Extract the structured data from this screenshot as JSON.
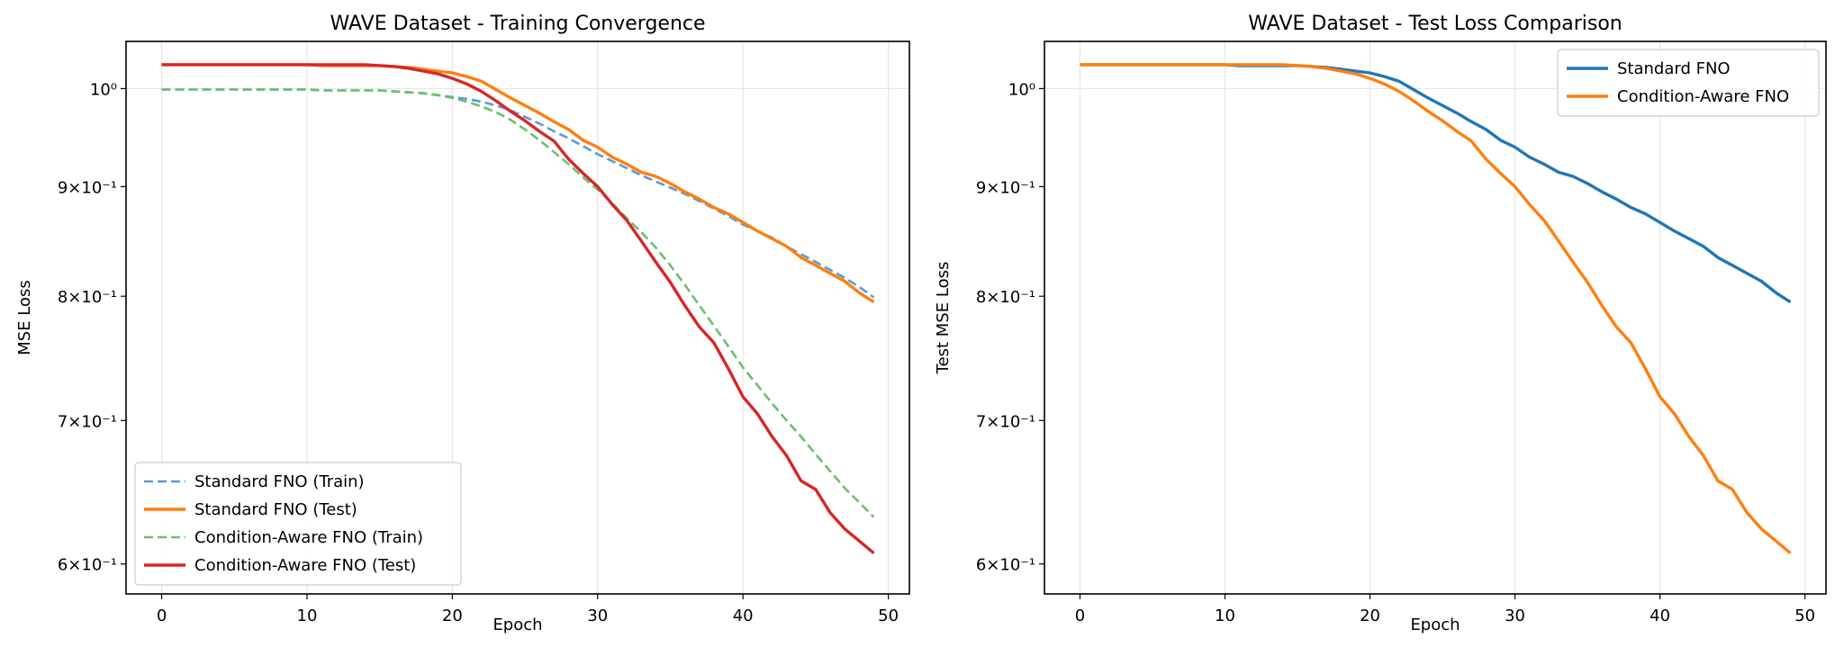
{
  "chart_data": [
    {
      "type": "line",
      "title": "WAVE Dataset - Training Convergence",
      "xlabel": "Epoch",
      "ylabel": "MSE Loss",
      "yscale": "log",
      "xlim": [
        -2.45,
        51.45
      ],
      "ylim": [
        0.581,
        1.052
      ],
      "xticks": [
        0,
        10,
        20,
        30,
        40,
        50
      ],
      "xtick_labels": [
        "0",
        "10",
        "20",
        "30",
        "40",
        "50"
      ],
      "yticks": [
        1.0,
        0.9,
        0.8,
        0.7,
        0.6
      ],
      "ytick_labels": [
        "10⁰",
        "9×10⁻¹",
        "8×10⁻¹",
        "7×10⁻¹",
        "6×10⁻¹"
      ],
      "grid": true,
      "legend_position": "lower-left",
      "series": [
        {
          "name": "Standard FNO (Train)",
          "color": "#5b9bd5",
          "style": "dashed",
          "values": [
            0.999,
            0.999,
            0.999,
            0.999,
            0.999,
            0.999,
            0.999,
            0.999,
            0.999,
            0.999,
            0.999,
            0.998,
            0.998,
            0.998,
            0.998,
            0.998,
            0.997,
            0.996,
            0.995,
            0.993,
            0.991,
            0.989,
            0.986,
            0.982,
            0.977,
            0.97,
            0.963,
            0.955,
            0.948,
            0.94,
            0.932,
            0.925,
            0.918,
            0.911,
            0.905,
            0.899,
            0.893,
            0.886,
            0.879,
            0.872,
            0.864,
            0.858,
            0.852,
            0.844,
            0.837,
            0.83,
            0.823,
            0.816,
            0.808,
            0.799
          ]
        },
        {
          "name": "Standard FNO (Test)",
          "color": "#ff7f0e",
          "style": "solid",
          "values": [
            1.026,
            1.026,
            1.026,
            1.026,
            1.026,
            1.026,
            1.026,
            1.026,
            1.026,
            1.026,
            1.026,
            1.025,
            1.025,
            1.025,
            1.025,
            1.025,
            1.024,
            1.023,
            1.021,
            1.019,
            1.017,
            1.013,
            1.008,
            0.999,
            0.99,
            0.982,
            0.974,
            0.965,
            0.957,
            0.946,
            0.939,
            0.929,
            0.922,
            0.914,
            0.91,
            0.903,
            0.895,
            0.888,
            0.88,
            0.874,
            0.866,
            0.858,
            0.851,
            0.844,
            0.834,
            0.827,
            0.82,
            0.813,
            0.803,
            0.795
          ]
        },
        {
          "name": "Condition-Aware FNO (Train)",
          "color": "#6cbf6c",
          "style": "dashed",
          "values": [
            0.999,
            0.999,
            0.999,
            0.999,
            0.999,
            0.999,
            0.999,
            0.999,
            0.999,
            0.999,
            0.999,
            0.998,
            0.998,
            0.998,
            0.998,
            0.998,
            0.997,
            0.996,
            0.995,
            0.993,
            0.99,
            0.986,
            0.981,
            0.975,
            0.967,
            0.957,
            0.946,
            0.934,
            0.922,
            0.909,
            0.897,
            0.884,
            0.87,
            0.857,
            0.843,
            0.827,
            0.81,
            0.792,
            0.775,
            0.758,
            0.741,
            0.727,
            0.713,
            0.7,
            0.688,
            0.675,
            0.663,
            0.651,
            0.641,
            0.631
          ]
        },
        {
          "name": "Condition-Aware FNO (Test)",
          "color": "#d62728",
          "style": "solid",
          "values": [
            1.026,
            1.026,
            1.026,
            1.026,
            1.026,
            1.026,
            1.026,
            1.026,
            1.026,
            1.026,
            1.026,
            1.026,
            1.026,
            1.026,
            1.026,
            1.025,
            1.024,
            1.022,
            1.019,
            1.016,
            1.011,
            1.005,
            0.997,
            0.987,
            0.976,
            0.966,
            0.955,
            0.945,
            0.927,
            0.913,
            0.9,
            0.883,
            0.868,
            0.849,
            0.83,
            0.812,
            0.792,
            0.774,
            0.761,
            0.74,
            0.718,
            0.705,
            0.688,
            0.674,
            0.656,
            0.65,
            0.634,
            0.623,
            0.615,
            0.607
          ]
        }
      ]
    },
    {
      "type": "line",
      "title": "WAVE Dataset - Test Loss Comparison",
      "xlabel": "Epoch",
      "ylabel": "Test MSE Loss",
      "yscale": "log",
      "xlim": [
        -2.45,
        51.45
      ],
      "ylim": [
        0.581,
        1.052
      ],
      "xticks": [
        0,
        10,
        20,
        30,
        40,
        50
      ],
      "xtick_labels": [
        "0",
        "10",
        "20",
        "30",
        "40",
        "50"
      ],
      "yticks": [
        1.0,
        0.9,
        0.8,
        0.7,
        0.6
      ],
      "ytick_labels": [
        "10⁰",
        "9×10⁻¹",
        "8×10⁻¹",
        "7×10⁻¹",
        "6×10⁻¹"
      ],
      "grid": true,
      "legend_position": "upper-right",
      "series": [
        {
          "name": "Standard FNO",
          "color": "#1f77b4",
          "style": "solid",
          "values": [
            1.026,
            1.026,
            1.026,
            1.026,
            1.026,
            1.026,
            1.026,
            1.026,
            1.026,
            1.026,
            1.026,
            1.025,
            1.025,
            1.025,
            1.025,
            1.025,
            1.024,
            1.023,
            1.021,
            1.019,
            1.017,
            1.013,
            1.008,
            0.999,
            0.99,
            0.982,
            0.974,
            0.965,
            0.957,
            0.946,
            0.939,
            0.929,
            0.922,
            0.914,
            0.91,
            0.903,
            0.895,
            0.888,
            0.88,
            0.874,
            0.866,
            0.858,
            0.851,
            0.844,
            0.834,
            0.827,
            0.82,
            0.813,
            0.803,
            0.795
          ]
        },
        {
          "name": "Condition-Aware FNO",
          "color": "#ff7f0e",
          "style": "solid",
          "values": [
            1.026,
            1.026,
            1.026,
            1.026,
            1.026,
            1.026,
            1.026,
            1.026,
            1.026,
            1.026,
            1.026,
            1.026,
            1.026,
            1.026,
            1.026,
            1.025,
            1.024,
            1.022,
            1.019,
            1.016,
            1.011,
            1.005,
            0.997,
            0.987,
            0.976,
            0.966,
            0.955,
            0.945,
            0.927,
            0.913,
            0.9,
            0.883,
            0.868,
            0.849,
            0.83,
            0.812,
            0.792,
            0.774,
            0.761,
            0.74,
            0.718,
            0.705,
            0.688,
            0.674,
            0.656,
            0.65,
            0.634,
            0.623,
            0.615,
            0.607
          ]
        }
      ]
    }
  ]
}
